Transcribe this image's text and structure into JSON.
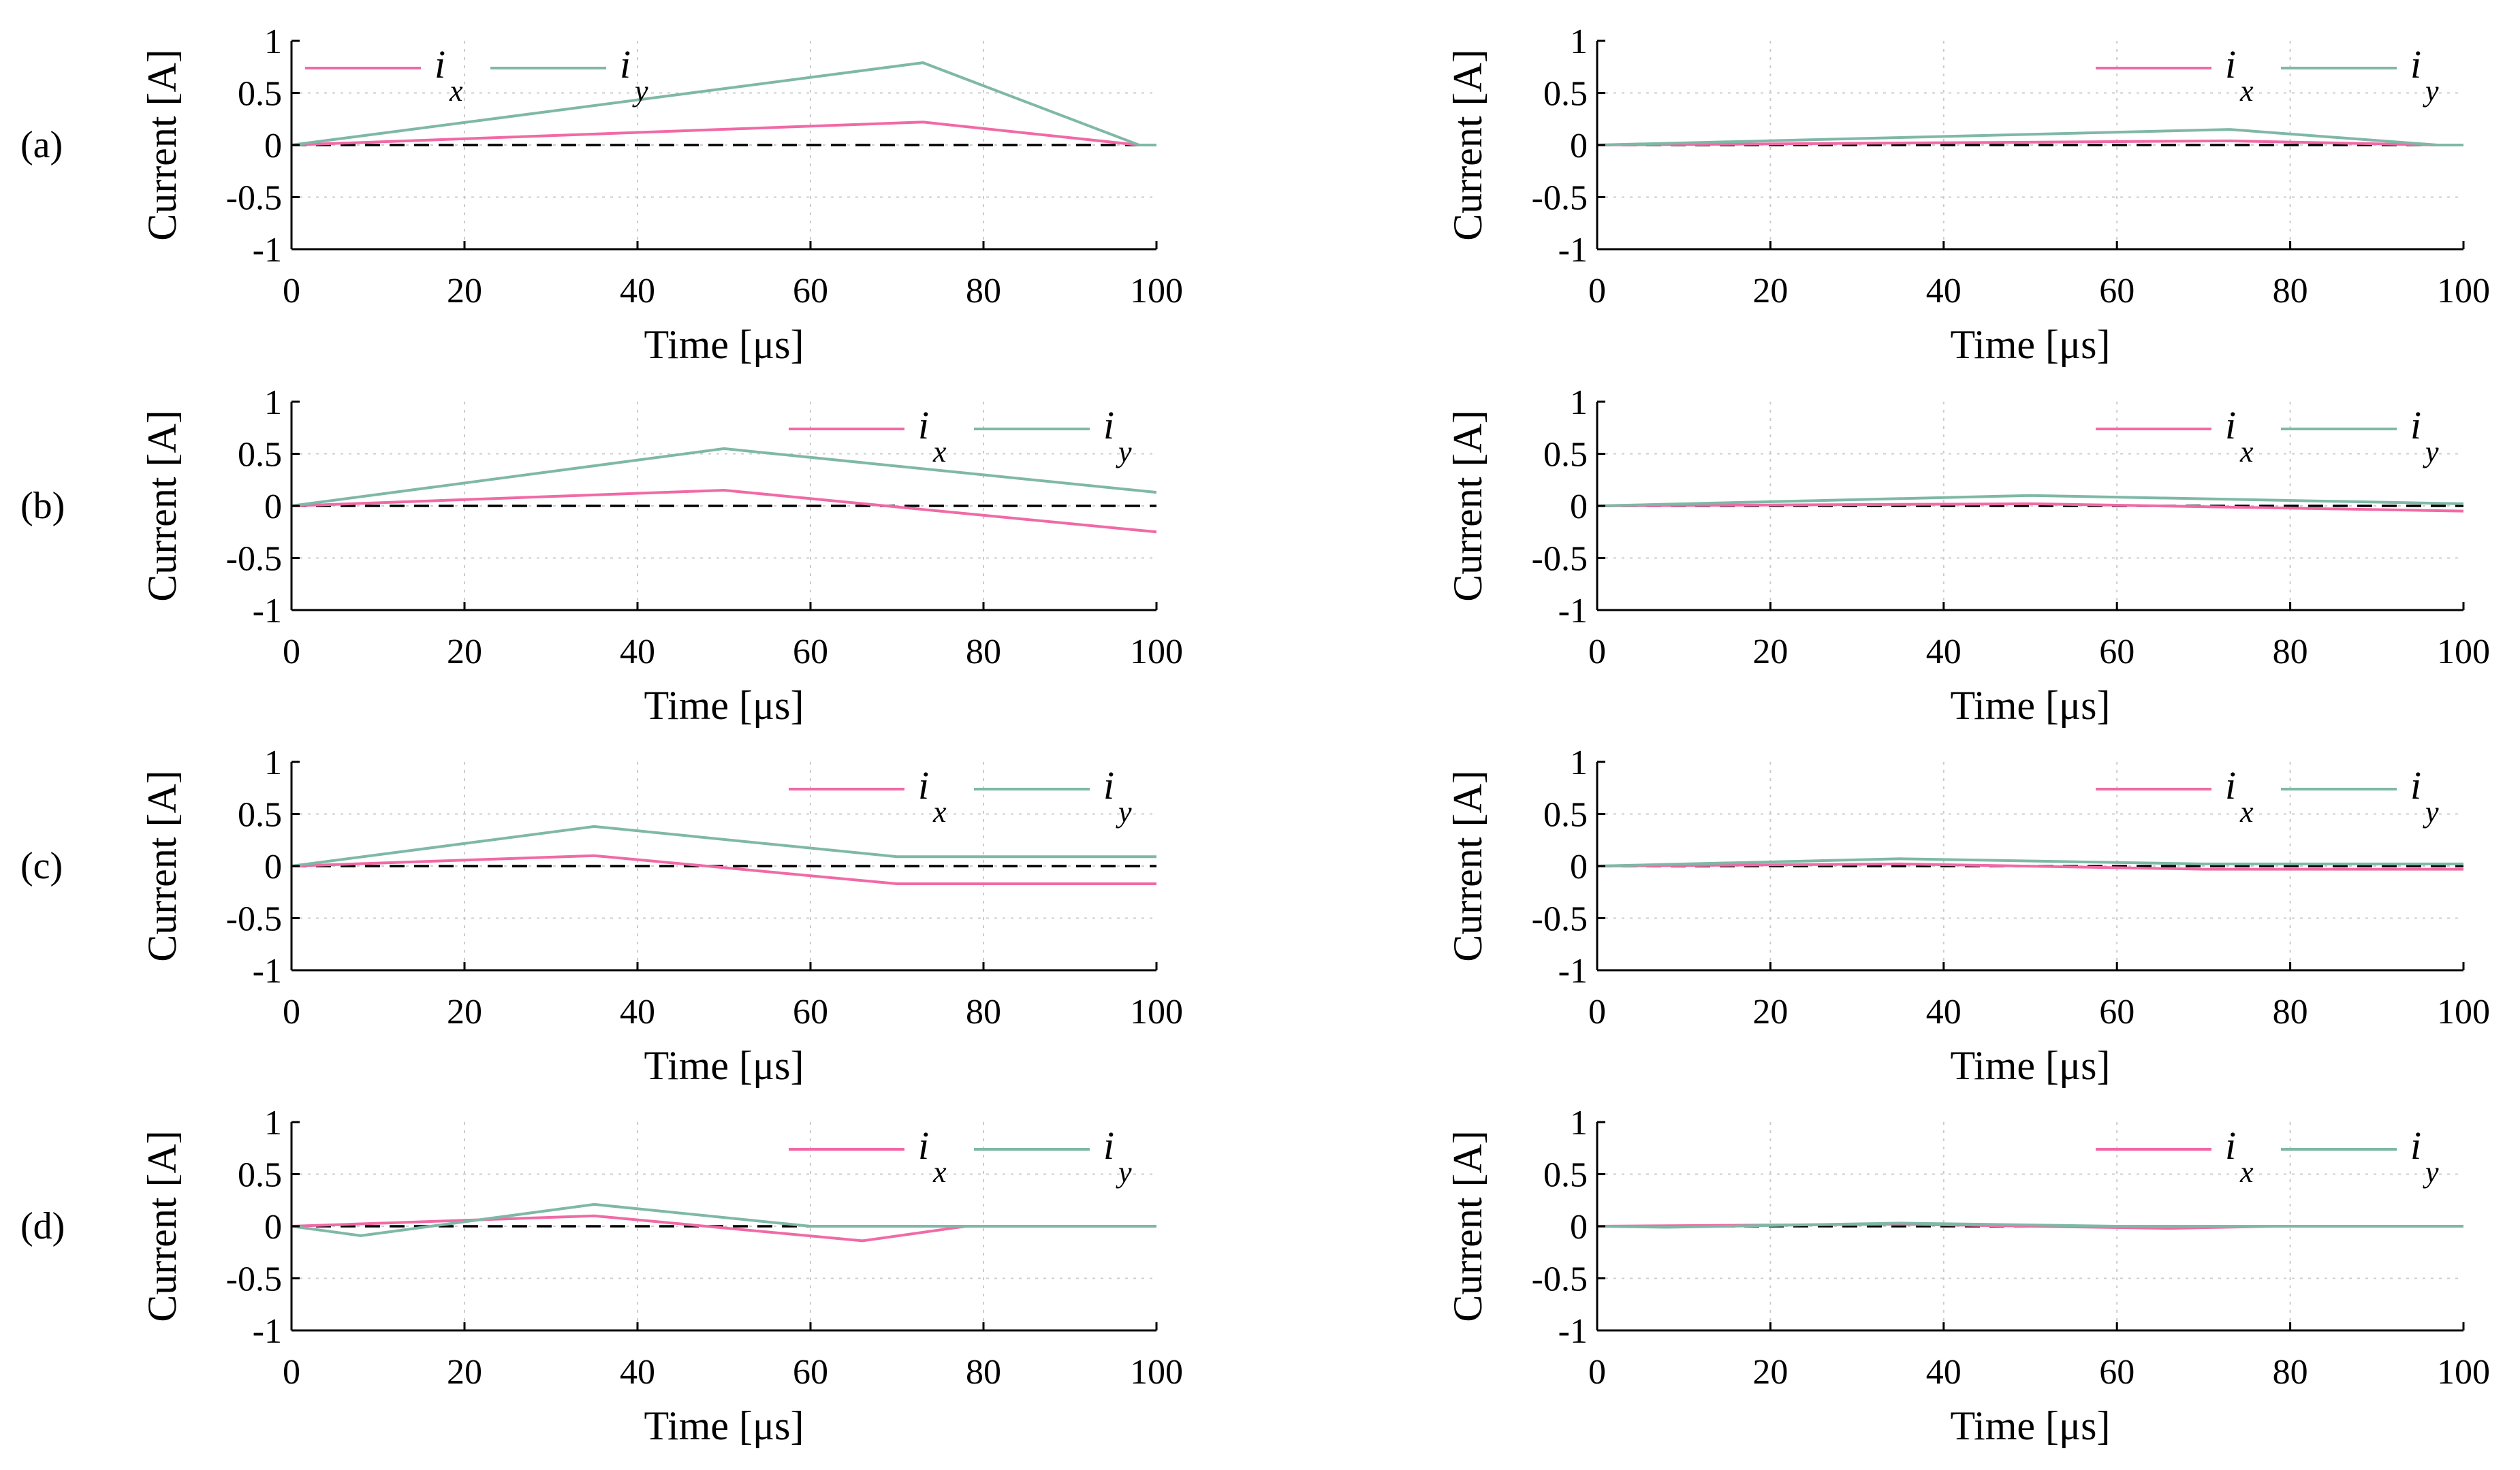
{
  "colors": {
    "ix": "#f06aa6",
    "iy": "#7fb8a6",
    "zero_line": "#000000",
    "grid": "#cccccc"
  },
  "row_labels": [
    "(a)",
    "(b)",
    "(c)",
    "(d)"
  ],
  "chart_data": [
    {
      "type": "line",
      "row": "(a)",
      "column": "left",
      "xlabel": "Time [μs]",
      "ylabel": "Current [A]",
      "xlim": [
        0,
        100
      ],
      "ylim": [
        -1,
        1
      ],
      "xticks": [
        0,
        20,
        40,
        60,
        80,
        100
      ],
      "yticks": [
        -1,
        -0.5,
        0,
        0.5,
        1
      ],
      "xtick_labels": [
        "0",
        "20",
        "40",
        "60",
        "80",
        "100"
      ],
      "ytick_labels": [
        "-1",
        "-0.5",
        "0",
        "0.5",
        "1"
      ],
      "grid": true,
      "legend_position": "top-left",
      "series": [
        {
          "name": "ix",
          "legend_main": "i",
          "legend_sub": "x",
          "x": [
            0,
            73,
            98,
            100
          ],
          "y": [
            0,
            0.22,
            0,
            0
          ]
        },
        {
          "name": "iy",
          "legend_main": "i",
          "legend_sub": "y",
          "x": [
            0,
            73,
            98,
            100
          ],
          "y": [
            0,
            0.79,
            0,
            0
          ]
        }
      ]
    },
    {
      "type": "line",
      "row": "(a)",
      "column": "right",
      "xlabel": "Time [μs]",
      "ylabel": "Current [A]",
      "xlim": [
        0,
        100
      ],
      "ylim": [
        -1,
        1
      ],
      "xticks": [
        0,
        20,
        40,
        60,
        80,
        100
      ],
      "yticks": [
        -1,
        -0.5,
        0,
        0.5,
        1
      ],
      "xtick_labels": [
        "0",
        "20",
        "40",
        "60",
        "80",
        "100"
      ],
      "ytick_labels": [
        "-1",
        "-0.5",
        "0",
        "0.5",
        "1"
      ],
      "grid": true,
      "legend_position": "top-right",
      "series": [
        {
          "name": "ix",
          "legend_main": "i",
          "legend_sub": "x",
          "x": [
            0,
            73,
            97,
            100
          ],
          "y": [
            0,
            0.04,
            0,
            0
          ]
        },
        {
          "name": "iy",
          "legend_main": "i",
          "legend_sub": "y",
          "x": [
            0,
            73,
            97,
            100
          ],
          "y": [
            0,
            0.15,
            0,
            0
          ]
        }
      ]
    },
    {
      "type": "line",
      "row": "(b)",
      "column": "left",
      "xlabel": "Time [μs]",
      "ylabel": "Current [A]",
      "xlim": [
        0,
        100
      ],
      "ylim": [
        -1,
        1
      ],
      "xticks": [
        0,
        20,
        40,
        60,
        80,
        100
      ],
      "yticks": [
        -1,
        -0.5,
        0,
        0.5,
        1
      ],
      "xtick_labels": [
        "0",
        "20",
        "40",
        "60",
        "80",
        "100"
      ],
      "ytick_labels": [
        "-1",
        "-0.5",
        "0",
        "0.5",
        "1"
      ],
      "grid": true,
      "legend_position": "top-right",
      "series": [
        {
          "name": "ix",
          "legend_main": "i",
          "legend_sub": "x",
          "x": [
            0,
            50,
            100
          ],
          "y": [
            0,
            0.15,
            -0.25
          ]
        },
        {
          "name": "iy",
          "legend_main": "i",
          "legend_sub": "y",
          "x": [
            0,
            50,
            100
          ],
          "y": [
            0,
            0.55,
            0.13
          ]
        }
      ]
    },
    {
      "type": "line",
      "row": "(b)",
      "column": "right",
      "xlabel": "Time [μs]",
      "ylabel": "Current [A]",
      "xlim": [
        0,
        100
      ],
      "ylim": [
        -1,
        1
      ],
      "xticks": [
        0,
        20,
        40,
        60,
        80,
        100
      ],
      "yticks": [
        -1,
        -0.5,
        0,
        0.5,
        1
      ],
      "xtick_labels": [
        "0",
        "20",
        "40",
        "60",
        "80",
        "100"
      ],
      "ytick_labels": [
        "-1",
        "-0.5",
        "0",
        "0.5",
        "1"
      ],
      "grid": true,
      "legend_position": "top-right",
      "series": [
        {
          "name": "ix",
          "legend_main": "i",
          "legend_sub": "x",
          "x": [
            0,
            50,
            100
          ],
          "y": [
            0,
            0.02,
            -0.05
          ]
        },
        {
          "name": "iy",
          "legend_main": "i",
          "legend_sub": "y",
          "x": [
            0,
            50,
            100
          ],
          "y": [
            0,
            0.1,
            0.02
          ]
        }
      ]
    },
    {
      "type": "line",
      "row": "(c)",
      "column": "left",
      "xlabel": "Time [μs]",
      "ylabel": "Current [A]",
      "xlim": [
        0,
        100
      ],
      "ylim": [
        -1,
        1
      ],
      "xticks": [
        0,
        20,
        40,
        60,
        80,
        100
      ],
      "yticks": [
        -1,
        -0.5,
        0,
        0.5,
        1
      ],
      "xtick_labels": [
        "0",
        "20",
        "40",
        "60",
        "80",
        "100"
      ],
      "ytick_labels": [
        "-1",
        "-0.5",
        "0",
        "0.5",
        "1"
      ],
      "grid": true,
      "legend_position": "top-right",
      "series": [
        {
          "name": "ix",
          "legend_main": "i",
          "legend_sub": "x",
          "x": [
            0,
            35,
            70,
            100
          ],
          "y": [
            0,
            0.1,
            -0.17,
            -0.17
          ]
        },
        {
          "name": "iy",
          "legend_main": "i",
          "legend_sub": "y",
          "x": [
            0,
            35,
            70,
            100
          ],
          "y": [
            0,
            0.38,
            0.09,
            0.09
          ]
        }
      ]
    },
    {
      "type": "line",
      "row": "(c)",
      "column": "right",
      "xlabel": "Time [μs]",
      "ylabel": "Current [A]",
      "xlim": [
        0,
        100
      ],
      "ylim": [
        -1,
        1
      ],
      "xticks": [
        0,
        20,
        40,
        60,
        80,
        100
      ],
      "yticks": [
        -1,
        -0.5,
        0,
        0.5,
        1
      ],
      "xtick_labels": [
        "0",
        "20",
        "40",
        "60",
        "80",
        "100"
      ],
      "ytick_labels": [
        "-1",
        "-0.5",
        "0",
        "0.5",
        "1"
      ],
      "grid": true,
      "legend_position": "top-right",
      "series": [
        {
          "name": "ix",
          "legend_main": "i",
          "legend_sub": "x",
          "x": [
            0,
            35,
            70,
            100
          ],
          "y": [
            0,
            0.02,
            -0.03,
            -0.03
          ]
        },
        {
          "name": "iy",
          "legend_main": "i",
          "legend_sub": "y",
          "x": [
            0,
            35,
            70,
            100
          ],
          "y": [
            0,
            0.07,
            0.02,
            0.02
          ]
        }
      ]
    },
    {
      "type": "line",
      "row": "(d)",
      "column": "left",
      "xlabel": "Time [μs]",
      "ylabel": "Current [A]",
      "xlim": [
        0,
        100
      ],
      "ylim": [
        -1,
        1
      ],
      "xticks": [
        0,
        20,
        40,
        60,
        80,
        100
      ],
      "yticks": [
        -1,
        -0.5,
        0,
        0.5,
        1
      ],
      "xtick_labels": [
        "0",
        "20",
        "40",
        "60",
        "80",
        "100"
      ],
      "ytick_labels": [
        "-1",
        "-0.5",
        "0",
        "0.5",
        "1"
      ],
      "grid": true,
      "legend_position": "top-right",
      "series": [
        {
          "name": "ix",
          "legend_main": "i",
          "legend_sub": "x",
          "x": [
            0,
            35,
            66,
            78,
            100
          ],
          "y": [
            0,
            0.1,
            -0.14,
            0,
            0
          ]
        },
        {
          "name": "iy",
          "legend_main": "i",
          "legend_sub": "y",
          "x": [
            0,
            8,
            35,
            60,
            78,
            100
          ],
          "y": [
            0,
            -0.09,
            0.21,
            0,
            0,
            0
          ]
        }
      ]
    },
    {
      "type": "line",
      "row": "(d)",
      "column": "right",
      "xlabel": "Time [μs]",
      "ylabel": "Current [A]",
      "xlim": [
        0,
        100
      ],
      "ylim": [
        -1,
        1
      ],
      "xticks": [
        0,
        20,
        40,
        60,
        80,
        100
      ],
      "yticks": [
        -1,
        -0.5,
        0,
        0.5,
        1
      ],
      "xtick_labels": [
        "0",
        "20",
        "40",
        "60",
        "80",
        "100"
      ],
      "ytick_labels": [
        "-1",
        "-0.5",
        "0",
        "0.5",
        "1"
      ],
      "grid": true,
      "legend_position": "top-right",
      "series": [
        {
          "name": "ix",
          "legend_main": "i",
          "legend_sub": "x",
          "x": [
            0,
            35,
            66,
            78,
            100
          ],
          "y": [
            0,
            0.02,
            -0.02,
            0,
            0
          ]
        },
        {
          "name": "iy",
          "legend_main": "i",
          "legend_sub": "y",
          "x": [
            0,
            8,
            35,
            60,
            78,
            100
          ],
          "y": [
            0,
            -0.01,
            0.03,
            0,
            0,
            0
          ]
        }
      ]
    }
  ]
}
